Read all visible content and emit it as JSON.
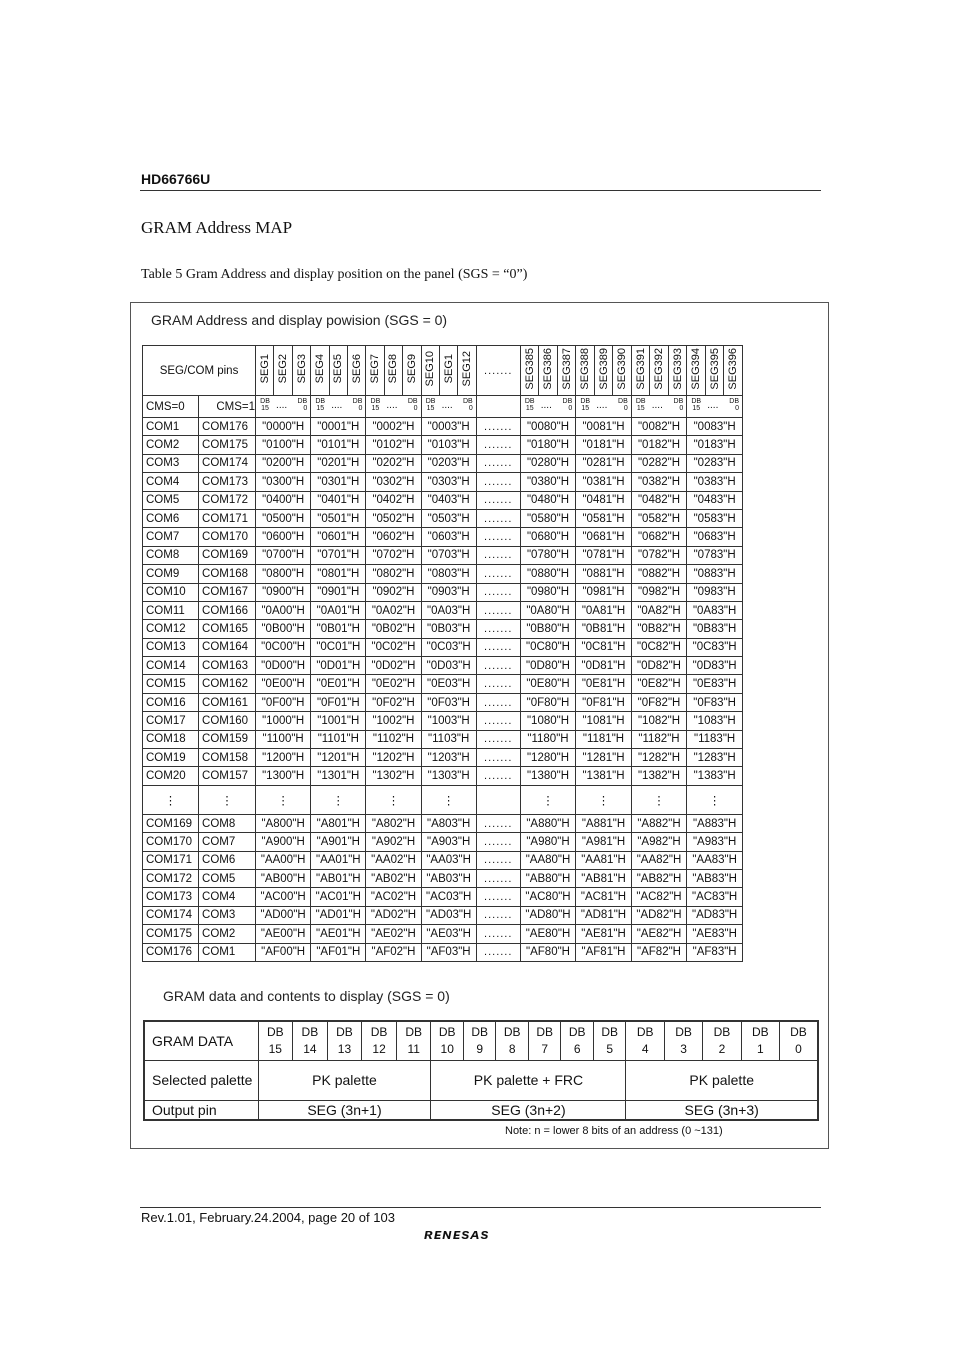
{
  "header": {
    "doc_id": "HD66766U"
  },
  "section_title": "GRAM Address MAP",
  "table_caption": "Table 5 Gram Address and display position on the panel (SGS = “0”)",
  "figure": {
    "title": "GRAM Address and display powision (SGS = 0)",
    "segcom_label": "SEG/COM pins",
    "seg_headers": [
      "SEG1",
      "SEG2",
      "SEG3",
      "SEG4",
      "SEG5",
      "SEG6",
      "SEG7",
      "SEG8",
      "SEG9",
      "SEG10",
      "SEG1",
      "SEG12",
      "SEG385",
      "SEG386",
      "SEG387",
      "SEG388",
      "SEG389",
      "SEG390",
      "SEG391",
      "SEG392",
      "SEG393",
      "SEG394",
      "SEG395",
      "SEG396"
    ],
    "ellipsis": ".......",
    "cms0": "CMS=0",
    "cms1": "CMS=1",
    "db_hi": "DB 15",
    "db_lo": "DB 0",
    "db_dots": "....",
    "rows": [
      [
        "COM1",
        "COM176",
        "\"0000\"H",
        "\"0001\"H",
        "\"0002\"H",
        "\"0003\"H",
        "\"0080\"H",
        "\"0081\"H",
        "\"0082\"H",
        "\"0083\"H"
      ],
      [
        "COM2",
        "COM175",
        "\"0100\"H",
        "\"0101\"H",
        "\"0102\"H",
        "\"0103\"H",
        "\"0180\"H",
        "\"0181\"H",
        "\"0182\"H",
        "\"0183\"H"
      ],
      [
        "COM3",
        "COM174",
        "\"0200\"H",
        "\"0201\"H",
        "\"0202\"H",
        "\"0203\"H",
        "\"0280\"H",
        "\"0281\"H",
        "\"0282\"H",
        "\"0283\"H"
      ],
      [
        "COM4",
        "COM173",
        "\"0300\"H",
        "\"0301\"H",
        "\"0302\"H",
        "\"0303\"H",
        "\"0380\"H",
        "\"0381\"H",
        "\"0382\"H",
        "\"0383\"H"
      ],
      [
        "COM5",
        "COM172",
        "\"0400\"H",
        "\"0401\"H",
        "\"0402\"H",
        "\"0403\"H",
        "\"0480\"H",
        "\"0481\"H",
        "\"0482\"H",
        "\"0483\"H"
      ],
      [
        "COM6",
        "COM171",
        "\"0500\"H",
        "\"0501\"H",
        "\"0502\"H",
        "\"0503\"H",
        "\"0580\"H",
        "\"0581\"H",
        "\"0582\"H",
        "\"0583\"H"
      ],
      [
        "COM7",
        "COM170",
        "\"0600\"H",
        "\"0601\"H",
        "\"0602\"H",
        "\"0603\"H",
        "\"0680\"H",
        "\"0681\"H",
        "\"0682\"H",
        "\"0683\"H"
      ],
      [
        "COM8",
        "COM169",
        "\"0700\"H",
        "\"0701\"H",
        "\"0702\"H",
        "\"0703\"H",
        "\"0780\"H",
        "\"0781\"H",
        "\"0782\"H",
        "\"0783\"H"
      ],
      [
        "COM9",
        "COM168",
        "\"0800\"H",
        "\"0801\"H",
        "\"0802\"H",
        "\"0803\"H",
        "\"0880\"H",
        "\"0881\"H",
        "\"0882\"H",
        "\"0883\"H"
      ],
      [
        "COM10",
        "COM167",
        "\"0900\"H",
        "\"0901\"H",
        "\"0902\"H",
        "\"0903\"H",
        "\"0980\"H",
        "\"0981\"H",
        "\"0982\"H",
        "\"0983\"H"
      ],
      [
        "COM11",
        "COM166",
        "\"0A00\"H",
        "\"0A01\"H",
        "\"0A02\"H",
        "\"0A03\"H",
        "\"0A80\"H",
        "\"0A81\"H",
        "\"0A82\"H",
        "\"0A83\"H"
      ],
      [
        "COM12",
        "COM165",
        "\"0B00\"H",
        "\"0B01\"H",
        "\"0B02\"H",
        "\"0B03\"H",
        "\"0B80\"H",
        "\"0B81\"H",
        "\"0B82\"H",
        "\"0B83\"H"
      ],
      [
        "COM13",
        "COM164",
        "\"0C00\"H",
        "\"0C01\"H",
        "\"0C02\"H",
        "\"0C03\"H",
        "\"0C80\"H",
        "\"0C81\"H",
        "\"0C82\"H",
        "\"0C83\"H"
      ],
      [
        "COM14",
        "COM163",
        "\"0D00\"H",
        "\"0D01\"H",
        "\"0D02\"H",
        "\"0D03\"H",
        "\"0D80\"H",
        "\"0D81\"H",
        "\"0D82\"H",
        "\"0D83\"H"
      ],
      [
        "COM15",
        "COM162",
        "\"0E00\"H",
        "\"0E01\"H",
        "\"0E02\"H",
        "\"0E03\"H",
        "\"0E80\"H",
        "\"0E81\"H",
        "\"0E82\"H",
        "\"0E83\"H"
      ],
      [
        "COM16",
        "COM161",
        "\"0F00\"H",
        "\"0F01\"H",
        "\"0F02\"H",
        "\"0F03\"H",
        "\"0F80\"H",
        "\"0F81\"H",
        "\"0F82\"H",
        "\"0F83\"H"
      ],
      [
        "COM17",
        "COM160",
        "\"1000\"H",
        "\"1001\"H",
        "\"1002\"H",
        "\"1003\"H",
        "\"1080\"H",
        "\"1081\"H",
        "\"1082\"H",
        "\"1083\"H"
      ],
      [
        "COM18",
        "COM159",
        "\"1100\"H",
        "\"1101\"H",
        "\"1102\"H",
        "\"1103\"H",
        "\"1180\"H",
        "\"1181\"H",
        "\"1182\"H",
        "\"1183\"H"
      ],
      [
        "COM19",
        "COM158",
        "\"1200\"H",
        "\"1201\"H",
        "\"1202\"H",
        "\"1203\"H",
        "\"1280\"H",
        "\"1281\"H",
        "\"1282\"H",
        "\"1283\"H"
      ],
      [
        "COM20",
        "COM157",
        "\"1300\"H",
        "\"1301\"H",
        "\"1302\"H",
        "\"1303\"H",
        "\"1380\"H",
        "\"1381\"H",
        "\"1382\"H",
        "\"1383\"H"
      ],
      [
        "COM169",
        "COM8",
        "\"A800\"H",
        "\"A801\"H",
        "\"A802\"H",
        "\"A803\"H",
        "\"A880\"H",
        "\"A881\"H",
        "\"A882\"H",
        "\"A883\"H"
      ],
      [
        "COM170",
        "COM7",
        "\"A900\"H",
        "\"A901\"H",
        "\"A902\"H",
        "\"A903\"H",
        "\"A980\"H",
        "\"A981\"H",
        "\"A982\"H",
        "\"A983\"H"
      ],
      [
        "COM171",
        "COM6",
        "\"AA00\"H",
        "\"AA01\"H",
        "\"AA02\"H",
        "\"AA03\"H",
        "\"AA80\"H",
        "\"AA81\"H",
        "\"AA82\"H",
        "\"AA83\"H"
      ],
      [
        "COM172",
        "COM5",
        "\"AB00\"H",
        "\"AB01\"H",
        "\"AB02\"H",
        "\"AB03\"H",
        "\"AB80\"H",
        "\"AB81\"H",
        "\"AB82\"H",
        "\"AB83\"H"
      ],
      [
        "COM173",
        "COM4",
        "\"AC00\"H",
        "\"AC01\"H",
        "\"AC02\"H",
        "\"AC03\"H",
        "\"AC80\"H",
        "\"AC81\"H",
        "\"AC82\"H",
        "\"AC83\"H"
      ],
      [
        "COM174",
        "COM3",
        "\"AD00\"H",
        "\"AD01\"H",
        "\"AD02\"H",
        "\"AD03\"H",
        "\"AD80\"H",
        "\"AD81\"H",
        "\"AD82\"H",
        "\"AD83\"H"
      ],
      [
        "COM175",
        "COM2",
        "\"AE00\"H",
        "\"AE01\"H",
        "\"AE02\"H",
        "\"AE03\"H",
        "\"AE80\"H",
        "\"AE81\"H",
        "\"AE82\"H",
        "\"AE83\"H"
      ],
      [
        "COM176",
        "COM1",
        "\"AF00\"H",
        "\"AF01\"H",
        "\"AF02\"H",
        "\"AF03\"H",
        "\"AF80\"H",
        "\"AF81\"H",
        "\"AF82\"H",
        "\"AF83\"H"
      ]
    ],
    "vdots": "⋮"
  },
  "gram_data": {
    "title": "GRAM data and contents to display (SGS = 0)",
    "row1_label": "GRAM DATA",
    "db_prefix": "DB",
    "bits": [
      "15",
      "14",
      "13",
      "12",
      "11",
      "10",
      "9",
      "8",
      "7",
      "6",
      "5",
      "4",
      "3",
      "2",
      "1",
      "0"
    ],
    "row2_label": "Selected palette",
    "palettes": [
      "PK palette",
      "PK palette + FRC",
      "PK palette"
    ],
    "row3_label": "Output pin",
    "outputs": [
      "SEG (3n+1)",
      "SEG (3n+2)",
      "SEG (3n+3)"
    ],
    "note": "Note: n = lower 8 bits of an address (0 ~131)"
  },
  "footer": {
    "text": "Rev.1.01, February.24.2004, page 20 of 103",
    "logo": "RENESAS"
  }
}
